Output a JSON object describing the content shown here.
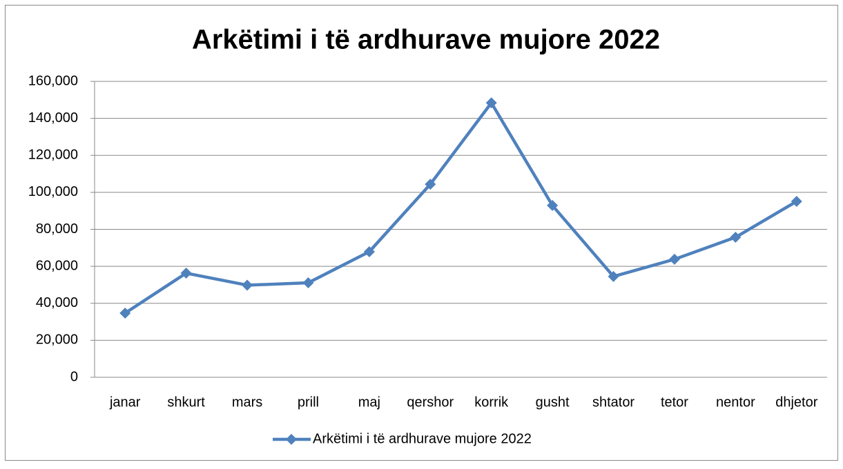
{
  "chart_data": {
    "type": "line",
    "title": "Arkëtimi i të ardhurave mujore 2022",
    "categories": [
      "janar",
      "shkurt",
      "mars",
      "prill",
      "maj",
      "qershor",
      "korrik",
      "gusht",
      "shtator",
      "tetor",
      "nentor",
      "dhjetor"
    ],
    "series": [
      {
        "name": "Arkëtimi i të ardhurave mujore 2022",
        "color": "#4f81bd",
        "values": [
          34700,
          56300,
          49800,
          51100,
          67900,
          104400,
          148400,
          92900,
          54500,
          63800,
          75700,
          95100
        ]
      }
    ],
    "ylim": [
      0,
      160000
    ],
    "yticks": [
      0,
      {
        "value": 20000,
        "label": "20,000"
      },
      {
        "value": 40000,
        "label": "40,000"
      },
      {
        "value": 60000,
        "label": "60,000"
      },
      {
        "value": 80000,
        "label": "80,000"
      },
      {
        "value": 100000,
        "label": "100,000"
      },
      {
        "value": 120000,
        "label": "120,000"
      },
      {
        "value": 140000,
        "label": "140,000"
      },
      {
        "value": 160000,
        "label": "160,000"
      }
    ],
    "grid": true,
    "legend": "bottom"
  }
}
